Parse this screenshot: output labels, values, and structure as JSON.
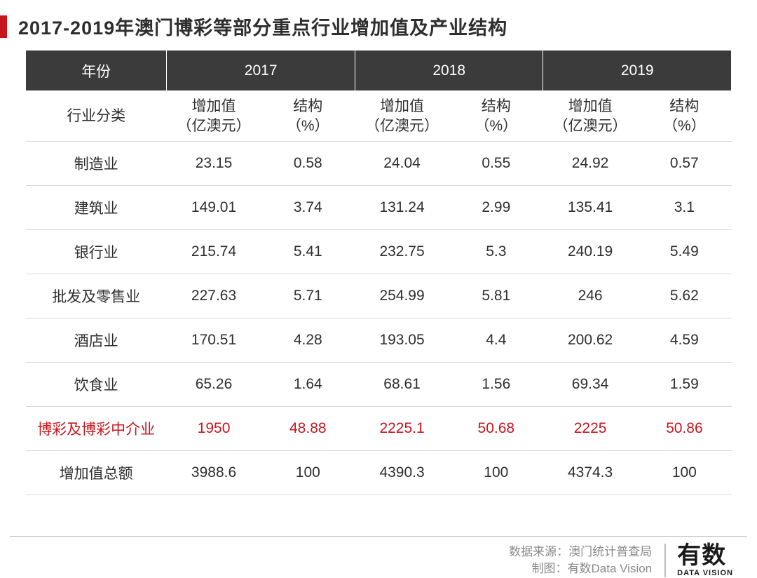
{
  "title": "2017-2019年澳门博彩等部分重点行业增加值及产业结构",
  "colors": {
    "accent_red": "#c8161d",
    "header_bg": "#3b3b3b",
    "header_fg": "#ffffff",
    "text": "#2e2e2e",
    "border": "#d9d9d9",
    "footer_text": "#8a8a8a",
    "bg": "#ffffff"
  },
  "table": {
    "type": "table",
    "year_label": "年份",
    "years": [
      "2017",
      "2018",
      "2019"
    ],
    "category_label": "行业分类",
    "subheaders": {
      "value_label": "增加值\n（亿澳元）",
      "pct_label": "结构\n（%）"
    },
    "rows": [
      {
        "name": "制造业",
        "v2017": "23.15",
        "p2017": "0.58",
        "v2018": "24.04",
        "p2018": "0.55",
        "v2019": "24.92",
        "p2019": "0.57",
        "highlight": false
      },
      {
        "name": "建筑业",
        "v2017": "149.01",
        "p2017": "3.74",
        "v2018": "131.24",
        "p2018": "2.99",
        "v2019": "135.41",
        "p2019": "3.1",
        "highlight": false
      },
      {
        "name": "银行业",
        "v2017": "215.74",
        "p2017": "5.41",
        "v2018": "232.75",
        "p2018": "5.3",
        "v2019": "240.19",
        "p2019": "5.49",
        "highlight": false
      },
      {
        "name": "批发及零售业",
        "v2017": "227.63",
        "p2017": "5.71",
        "v2018": "254.99",
        "p2018": "5.81",
        "v2019": "246",
        "p2019": "5.62",
        "highlight": false
      },
      {
        "name": "酒店业",
        "v2017": "170.51",
        "p2017": "4.28",
        "v2018": "193.05",
        "p2018": "4.4",
        "v2019": "200.62",
        "p2019": "4.59",
        "highlight": false
      },
      {
        "name": "饮食业",
        "v2017": "65.26",
        "p2017": "1.64",
        "v2018": "68.61",
        "p2018": "1.56",
        "v2019": "69.34",
        "p2019": "1.59",
        "highlight": false
      },
      {
        "name": "博彩及博彩中介业",
        "v2017": "1950",
        "p2017": "48.88",
        "v2018": "2225.1",
        "p2018": "50.68",
        "v2019": "2225",
        "p2019": "50.86",
        "highlight": true
      },
      {
        "name": "增加值总额",
        "v2017": "3988.6",
        "p2017": "100",
        "v2018": "4390.3",
        "p2018": "100",
        "v2019": "4374.3",
        "p2019": "100",
        "highlight": false
      }
    ]
  },
  "footer": {
    "source_label": "数据来源：澳门统计普查局",
    "chart_label": "制图：有数Data Vision",
    "logo_cn": "有数",
    "logo_en": "DATA VISION"
  }
}
